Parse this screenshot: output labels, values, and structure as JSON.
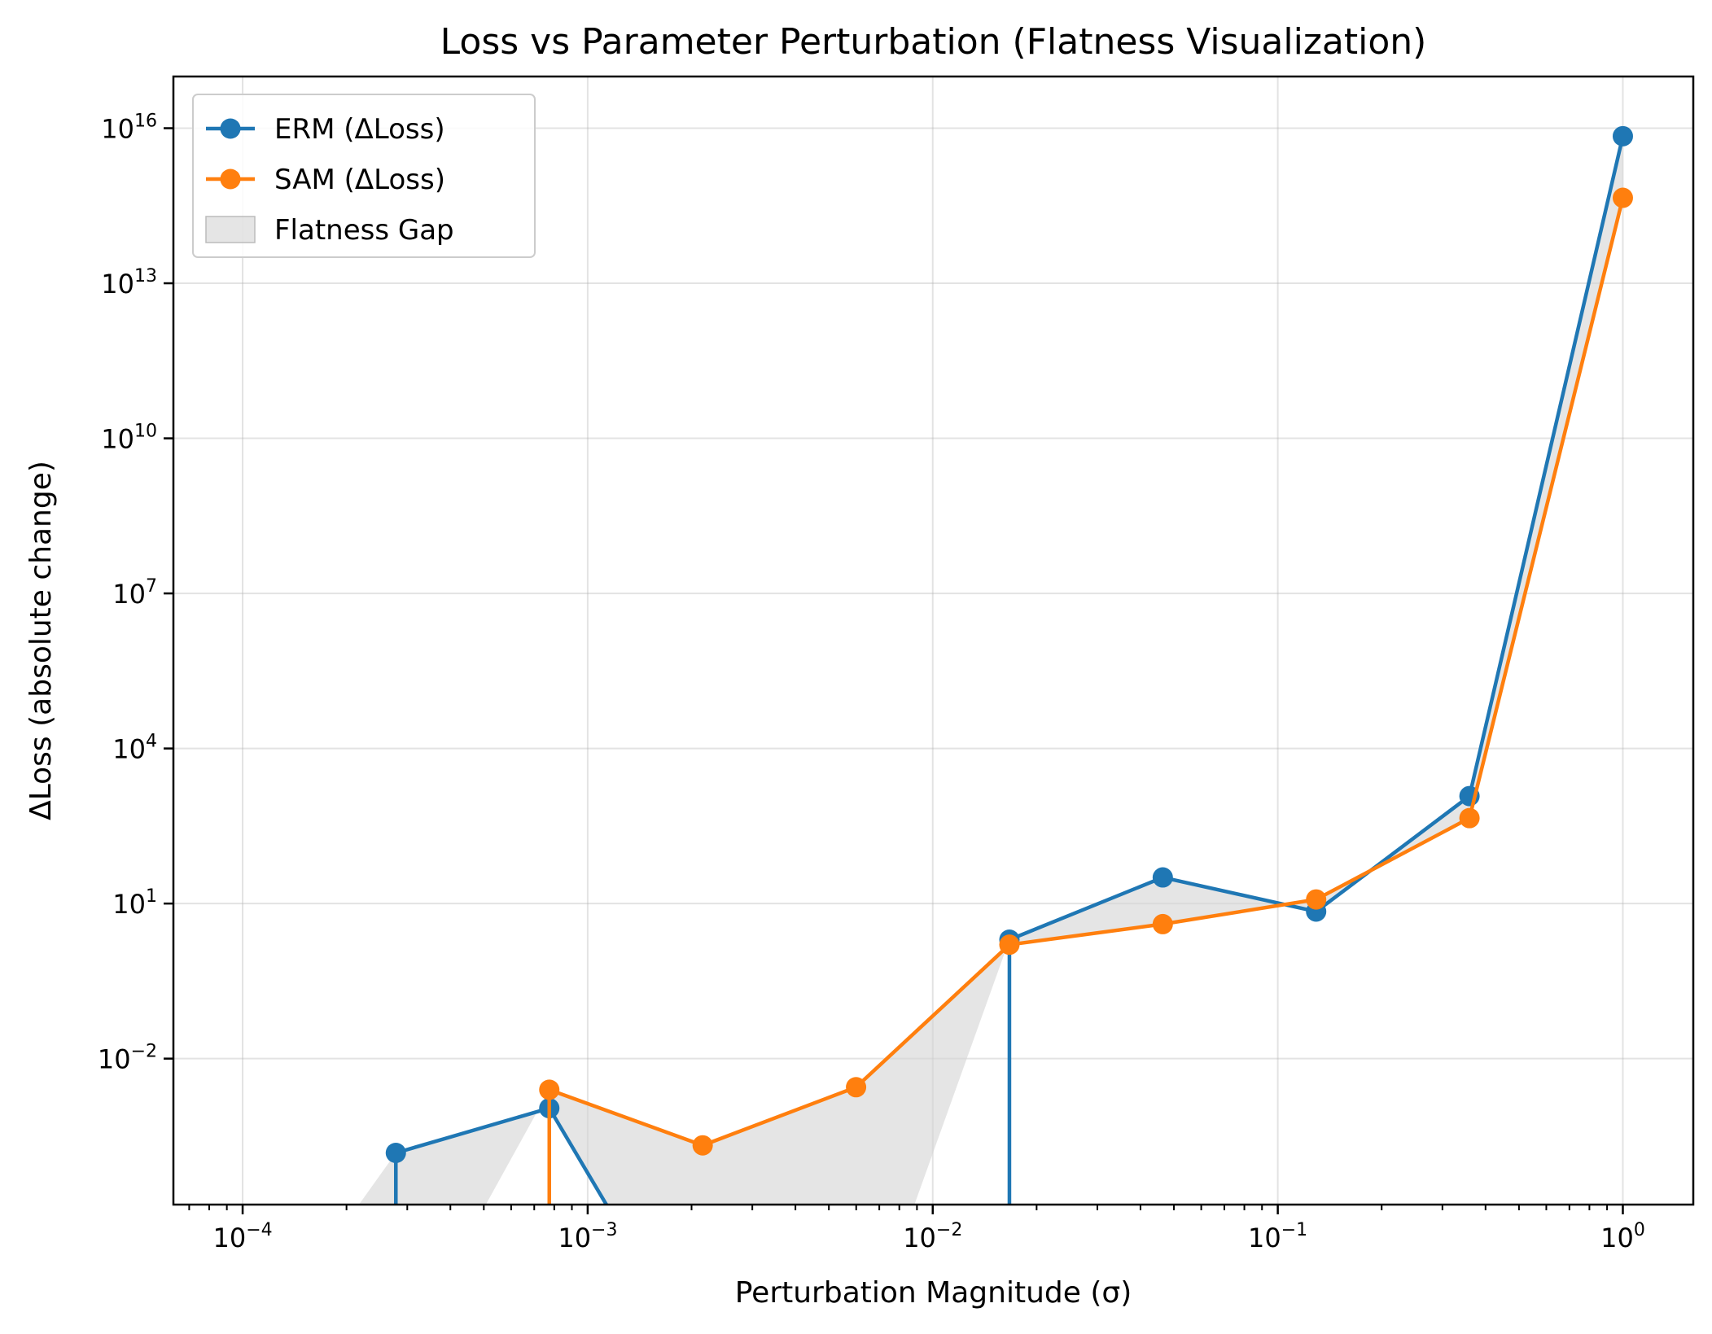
{
  "chart_data": {
    "type": "line",
    "title": "Loss vs Parameter Perturbation (Flatness Visualization)",
    "xlabel": "Perturbation Magnitude (σ)",
    "ylabel": "ΔLoss (absolute change)",
    "x_scale": "log",
    "y_scale": "log",
    "xlim": [
      6.3e-05,
      1.6
    ],
    "ylim": [
      1.5e-05,
      1e+17
    ],
    "x_ticks": [
      {
        "value": 0.0001,
        "base": "10",
        "exp": "−4"
      },
      {
        "value": 0.001,
        "base": "10",
        "exp": "−3"
      },
      {
        "value": 0.01,
        "base": "10",
        "exp": "−2"
      },
      {
        "value": 0.1,
        "base": "10",
        "exp": "−1"
      },
      {
        "value": 1,
        "base": "10",
        "exp": "0"
      }
    ],
    "y_ticks": [
      {
        "value": 0.01,
        "base": "10",
        "exp": "−2"
      },
      {
        "value": 10,
        "base": "10",
        "exp": "1"
      },
      {
        "value": 10000,
        "base": "10",
        "exp": "4"
      },
      {
        "value": 10000000.0,
        "base": "10",
        "exp": "7"
      },
      {
        "value": 10000000000.0,
        "base": "10",
        "exp": "10"
      },
      {
        "value": 10000000000000.0,
        "base": "10",
        "exp": "13"
      },
      {
        "value": 1e+16,
        "base": "10",
        "exp": "16"
      }
    ],
    "x": [
      0.0001,
      0.000278,
      0.000774,
      0.002154,
      0.005995,
      0.016681,
      0.046416,
      0.129155,
      0.359381,
      1.0
    ],
    "series": [
      {
        "name": "ERM (ΔLoss)",
        "color": "#1f77b4",
        "values": [
          null,
          0.00015,
          0.0011,
          null,
          null,
          2.0,
          32,
          7,
          1200,
          7000000000000000.0
        ]
      },
      {
        "name": "SAM (ΔLoss)",
        "color": "#ff7f0e",
        "values": [
          null,
          null,
          0.0025,
          0.00021,
          0.0028,
          1.6,
          4.0,
          12,
          450,
          450000000000000.0
        ]
      }
    ],
    "fill": {
      "name": "Flatness Gap",
      "color": "#d3d3d3"
    },
    "grid": true,
    "legend_position": "top-left"
  }
}
